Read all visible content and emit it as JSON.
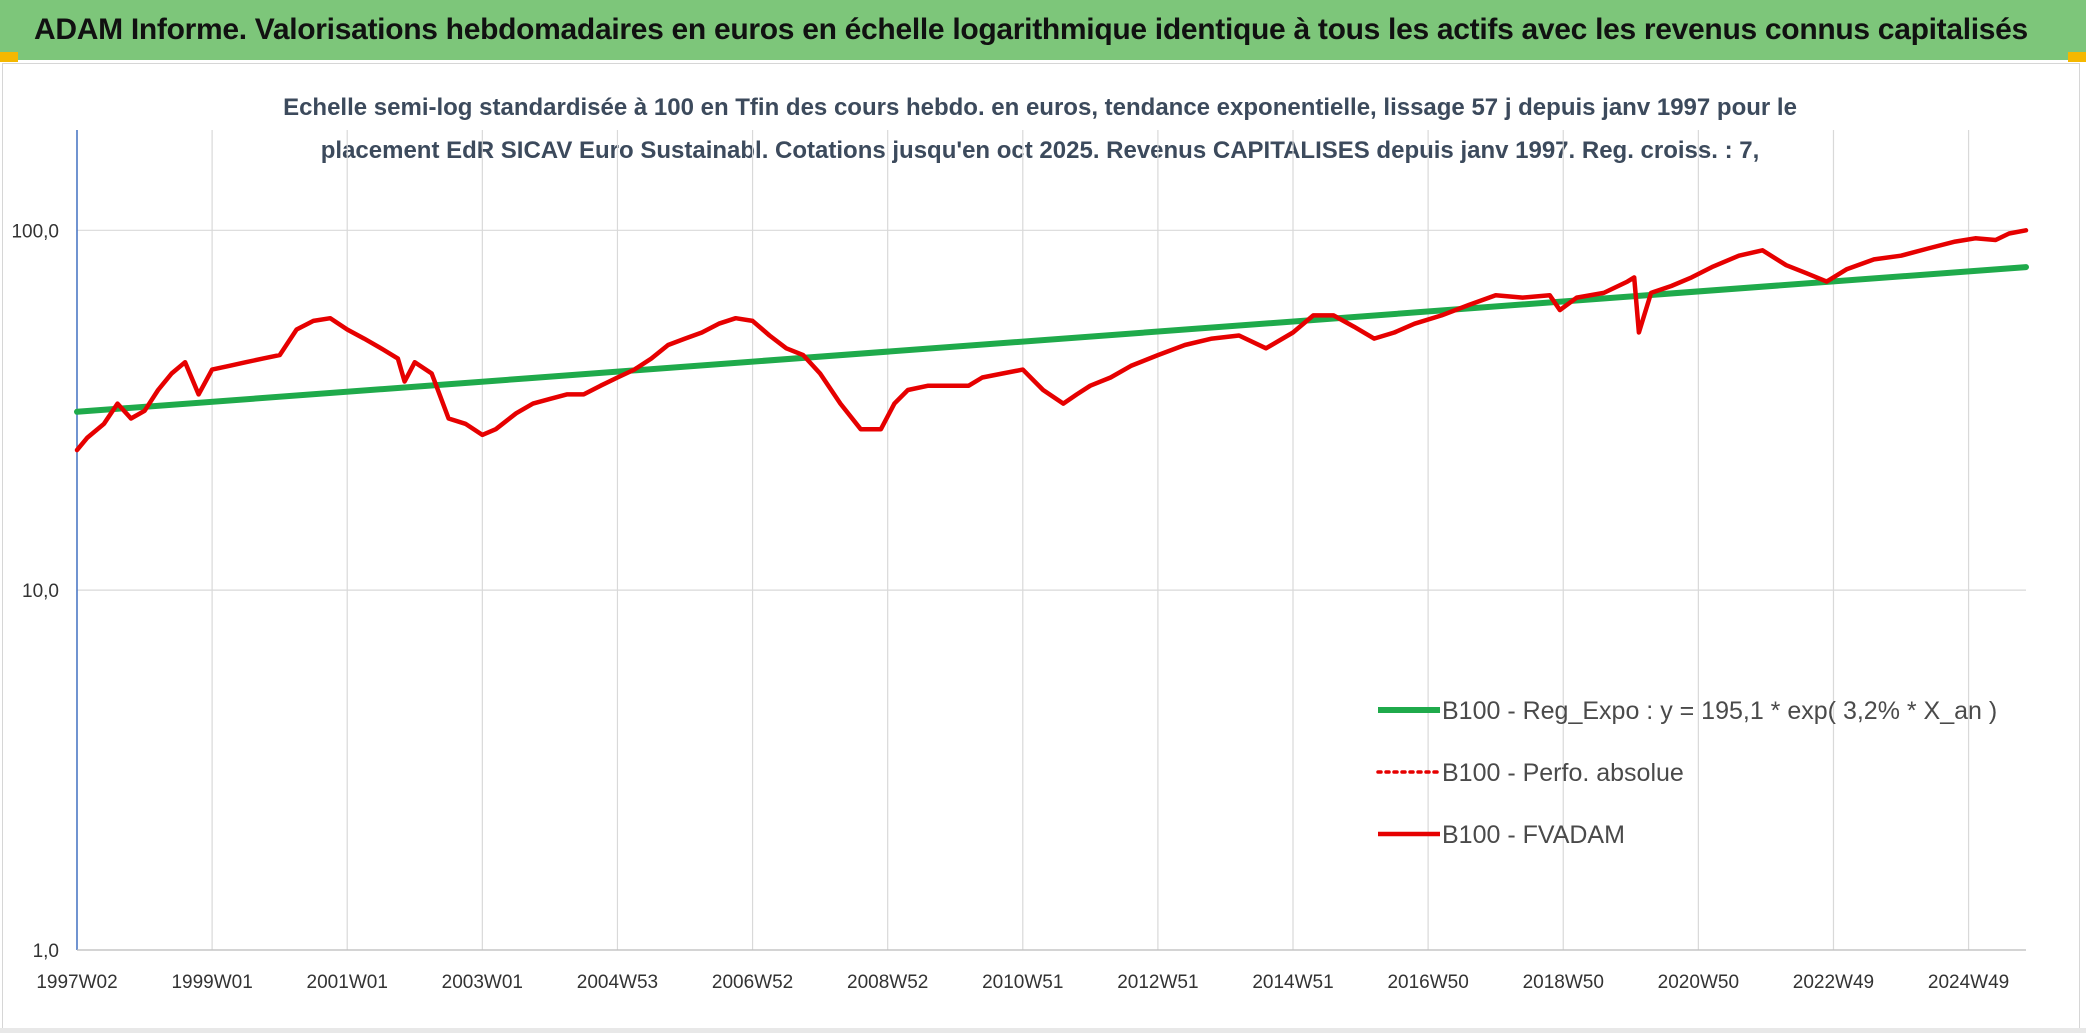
{
  "header": {
    "title": "ADAM Informe. Valorisations hebdomadaires en euros en échelle logarithmique identique à tous les actifs avec les revenus connus capitalisés"
  },
  "colors": {
    "header_bg": "#7dc67a",
    "corner": "#f5b800",
    "trend": "#1faa4b",
    "perf": "#e60000",
    "grid": "#d9d9d9",
    "axis": "#4472c4"
  },
  "chart_data": {
    "type": "line",
    "title_lines": [
      "Echelle semi-log standardisée à 100 en Tfin des cours hebdo. en euros, tendance exponentielle, lissage 57 j depuis janv 1997 pour le",
      "placement EdR SICAV Euro Sustainabl. Cotations jusqu'en oct 2025. Revenus CAPITALISES depuis janv 1997. Reg. croiss. : 7,"
    ],
    "y_scale": "log",
    "ylim": [
      1,
      190
    ],
    "y_ticks": [
      1,
      10,
      100
    ],
    "y_tick_labels": [
      "1,0",
      "10,0",
      "100,0"
    ],
    "x_range": [
      1997.0,
      2025.85
    ],
    "x_ticks": [
      {
        "label": "1997W02",
        "x": 1997.0
      },
      {
        "label": "1999W01",
        "x": 1999.0
      },
      {
        "label": "2001W01",
        "x": 2001.0
      },
      {
        "label": "2003W01",
        "x": 2003.0
      },
      {
        "label": "2004W53",
        "x": 2005.0
      },
      {
        "label": "2006W52",
        "x": 2007.0
      },
      {
        "label": "2008W52",
        "x": 2009.0
      },
      {
        "label": "2010W51",
        "x": 2011.0
      },
      {
        "label": "2012W51",
        "x": 2013.0
      },
      {
        "label": "2014W51",
        "x": 2015.0
      },
      {
        "label": "2016W50",
        "x": 2017.0
      },
      {
        "label": "2018W50",
        "x": 2019.0
      },
      {
        "label": "2020W50",
        "x": 2021.0
      },
      {
        "label": "2022W49",
        "x": 2023.0
      },
      {
        "label": "2024W49",
        "x": 2025.0
      }
    ],
    "grid": true,
    "legend_position": "bottom-right",
    "series": [
      {
        "name": "B100 - Reg_Expo : y = 195,1 * exp( 3,2% *  X_an )",
        "style": "line-thick",
        "x": [
          1997.0,
          2025.85
        ],
        "y": [
          31.3,
          79
        ]
      },
      {
        "name": "B100 - Perfo. absolue",
        "style": "dotted",
        "x": [],
        "y": []
      },
      {
        "name": "B100 - FVADAM",
        "style": "line",
        "x": [
          1997.0,
          1997.15,
          1997.4,
          1997.6,
          1997.8,
          1998.0,
          1998.2,
          1998.4,
          1998.6,
          1998.8,
          1999.0,
          1999.25,
          1999.5,
          1999.75,
          2000.0,
          2000.25,
          2000.5,
          2000.75,
          2001.0,
          2001.25,
          2001.5,
          2001.75,
          2001.85,
          2002.0,
          2002.25,
          2002.5,
          2002.75,
          2003.0,
          2003.2,
          2003.5,
          2003.75,
          2004.0,
          2004.25,
          2004.5,
          2004.75,
          2005.0,
          2005.25,
          2005.5,
          2005.75,
          2006.0,
          2006.25,
          2006.5,
          2006.75,
          2007.0,
          2007.25,
          2007.5,
          2007.75,
          2008.0,
          2008.3,
          2008.6,
          2008.9,
          2009.1,
          2009.3,
          2009.6,
          2009.9,
          2010.2,
          2010.4,
          2010.7,
          2011.0,
          2011.3,
          2011.6,
          2011.8,
          2012.0,
          2012.3,
          2012.6,
          2013.0,
          2013.4,
          2013.8,
          2014.2,
          2014.6,
          2015.0,
          2015.3,
          2015.6,
          2015.9,
          2016.2,
          2016.5,
          2016.8,
          2017.2,
          2017.6,
          2018.0,
          2018.4,
          2018.8,
          2018.95,
          2019.2,
          2019.6,
          2019.95,
          2020.05,
          2020.12,
          2020.3,
          2020.6,
          2020.9,
          2021.2,
          2021.6,
          2021.95,
          2022.3,
          2022.6,
          2022.9,
          2023.2,
          2023.6,
          2024.0,
          2024.4,
          2024.8,
          2025.1,
          2025.4,
          2025.6,
          2025.85
        ],
        "y": [
          24.5,
          26.5,
          29,
          33,
          30,
          31.5,
          36,
          40,
          43,
          35,
          41,
          42,
          43,
          44,
          45,
          53,
          56,
          57,
          53,
          50,
          47,
          44,
          38,
          43,
          40,
          30,
          29,
          27,
          28,
          31,
          33,
          34,
          35,
          35,
          37,
          39,
          41,
          44,
          48,
          50,
          52,
          55,
          57,
          56,
          51,
          47,
          45,
          40,
          33,
          28,
          28,
          33,
          36,
          37,
          37,
          37,
          39,
          40,
          41,
          36,
          33,
          35,
          37,
          39,
          42,
          45,
          48,
          50,
          51,
          47,
          52,
          58,
          58,
          54,
          50,
          52,
          55,
          58,
          62,
          66,
          65,
          66,
          60,
          65,
          67,
          72,
          74,
          52,
          67,
          70,
          74,
          79,
          85,
          88,
          80,
          76,
          72,
          78,
          83,
          85,
          89,
          93,
          95,
          94,
          98,
          100
        ]
      }
    ]
  }
}
